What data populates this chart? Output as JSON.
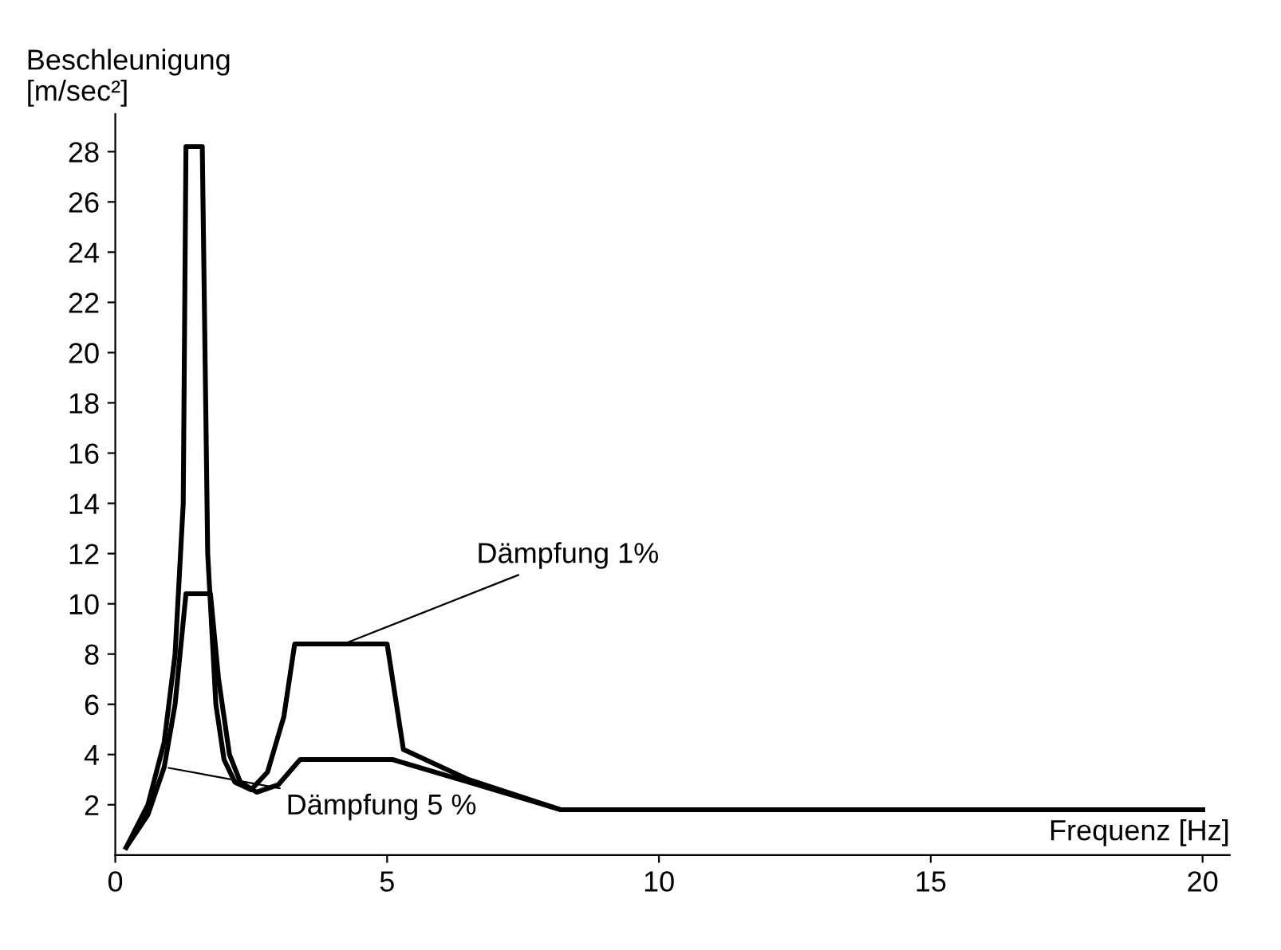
{
  "chart_data": {
    "type": "line",
    "xlabel": "Frequenz [Hz]",
    "ylabel": "Beschleunigung\n[m/sec²]",
    "xlim": [
      0,
      20.5
    ],
    "ylim": [
      0,
      29.5
    ],
    "xticks": [
      0,
      5,
      10,
      15,
      20
    ],
    "yticks": [
      2,
      4,
      6,
      8,
      10,
      12,
      14,
      16,
      18,
      20,
      22,
      24,
      26,
      28
    ],
    "grid": false,
    "legend": false,
    "marker": "none",
    "line_style": "solid",
    "series": [
      {
        "color": "#000000",
        "x": [
          0.2,
          0.6,
          0.9,
          1.1,
          1.25,
          1.3,
          1.6,
          1.7,
          1.85,
          2.0,
          2.2,
          2.5,
          2.8,
          3.1,
          3.3,
          5.0,
          5.3,
          6.5,
          8.2,
          20
        ],
        "values": [
          0.3,
          2.0,
          4.5,
          8.0,
          14.0,
          28.2,
          28.2,
          12.0,
          6.0,
          3.8,
          2.9,
          2.6,
          3.3,
          5.5,
          8.4,
          8.4,
          4.2,
          3.0,
          1.8,
          1.8
        ]
      },
      {
        "color": "#000000",
        "x": [
          0.2,
          0.6,
          0.9,
          1.1,
          1.3,
          1.75,
          1.9,
          2.1,
          2.3,
          2.6,
          3.0,
          3.4,
          5.1,
          6.5,
          8.2,
          20
        ],
        "values": [
          0.3,
          1.6,
          3.5,
          6.0,
          10.4,
          10.4,
          7.0,
          4.0,
          2.9,
          2.5,
          2.8,
          3.8,
          3.8,
          2.9,
          1.8,
          1.8
        ]
      }
    ],
    "annotations": [
      {
        "text": "Dämpfung 1%",
        "x": 4.2,
        "y": 8.4
      },
      {
        "text": "Dämpfung 5 %",
        "x": 0.9,
        "y": 3.5
      }
    ]
  }
}
